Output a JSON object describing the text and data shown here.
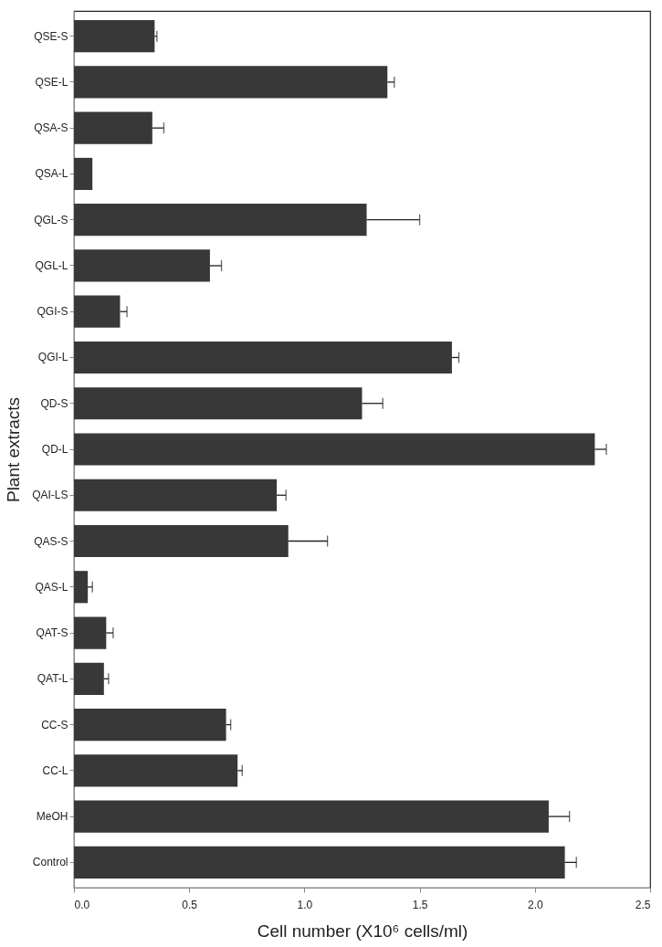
{
  "chart_data": {
    "type": "bar",
    "orientation": "horizontal",
    "xlabel": "Cell number (X10⁶ cells/ml)",
    "ylabel": "Plant extracts",
    "categories": [
      "QSE-S",
      "QSE-L",
      "QSA-S",
      "QSA-L",
      "QGL-S",
      "QGL-L",
      "QGI-S",
      "QGI-L",
      "QD-S",
      "QD-L",
      "QAI-LS",
      "QAS-S",
      "QAS-L",
      "QAT-S",
      "QAT-L",
      "CC-S",
      "CC-L",
      "MeOH",
      "Control"
    ],
    "values": [
      0.35,
      1.36,
      0.34,
      0.08,
      1.27,
      0.59,
      0.2,
      1.64,
      1.25,
      2.26,
      0.88,
      0.93,
      0.06,
      0.14,
      0.13,
      0.66,
      0.71,
      2.06,
      2.13
    ],
    "errors": [
      [
        0.35,
        0.36
      ],
      [
        1.36,
        1.39
      ],
      [
        0.34,
        0.39
      ],
      null,
      [
        1.27,
        1.5
      ],
      [
        0.59,
        0.64
      ],
      [
        0.2,
        0.23
      ],
      [
        1.64,
        1.67
      ],
      [
        1.25,
        1.34
      ],
      [
        2.26,
        2.31
      ],
      [
        0.88,
        0.92
      ],
      [
        0.93,
        1.1
      ],
      [
        0.06,
        0.08
      ],
      [
        0.14,
        0.17
      ],
      [
        0.13,
        0.15
      ],
      [
        0.66,
        0.68
      ],
      [
        0.71,
        0.73
      ],
      [
        2.06,
        2.15
      ],
      [
        2.13,
        2.18
      ]
    ],
    "color": "#383838",
    "xlim": [
      0,
      2.5
    ],
    "xticks": [
      {
        "value": 0,
        "label": "0.0"
      },
      0.5,
      {
        "value": 1,
        "label": "1.0"
      },
      1.5,
      {
        "value": 2,
        "label": "2.0"
      },
      2.5
    ],
    "grid": false
  }
}
